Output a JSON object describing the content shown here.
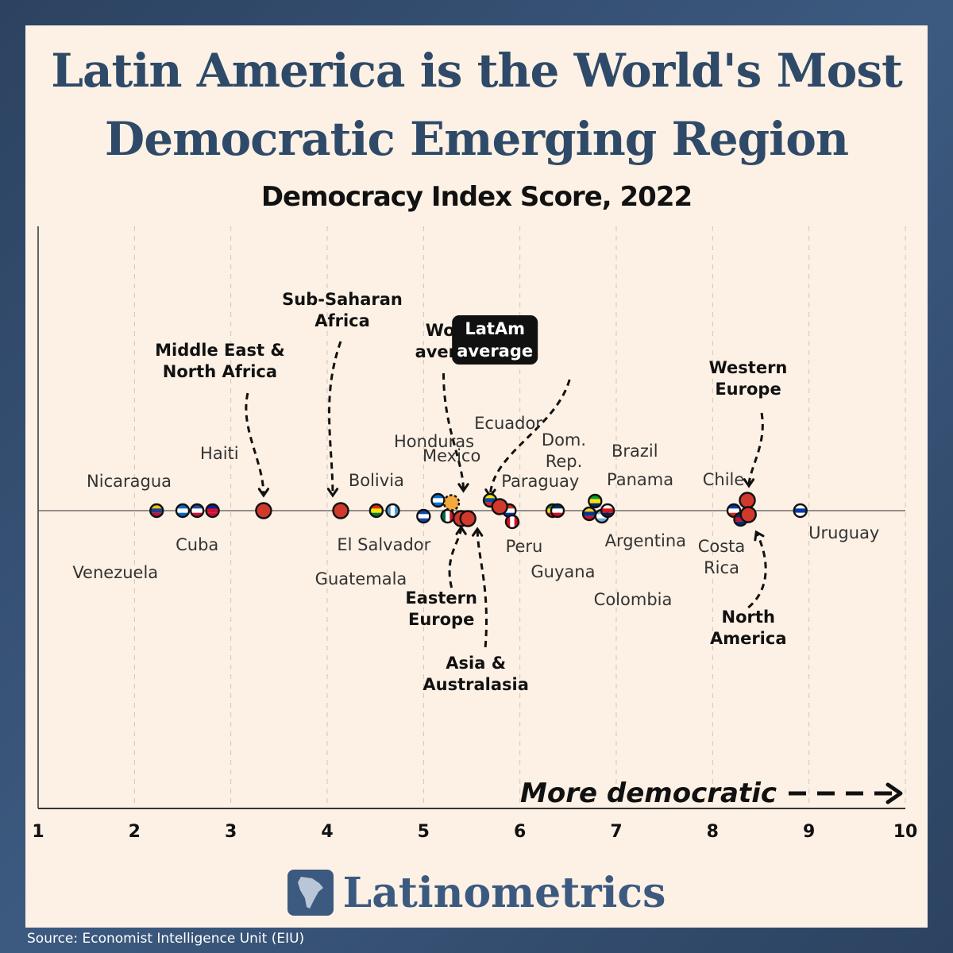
{
  "title_line1": "Latin America is the World's Most",
  "title_line2": "Democratic Emerging Region",
  "brand": "Latinometrics",
  "source": "Source: Economist Intelligence Unit (EIU)",
  "colors": {
    "background": "#34506f",
    "card": "#fdf1e5",
    "title": "#2e4a68",
    "region_marker": "#d0392b",
    "world_marker": "#f4a93c",
    "brand": "#3c5a80"
  },
  "chart_data": {
    "type": "scatter",
    "title": "Democracy Index Score, 2022",
    "xlim": [
      1,
      10
    ],
    "xticks": [
      "1",
      "2",
      "3",
      "4",
      "5",
      "6",
      "7",
      "8",
      "9",
      "10"
    ],
    "grid": true,
    "direction_label": "More democratic",
    "countries": [
      {
        "name": "Venezuela",
        "value": 2.23,
        "flag": "venezuela-flag-icon"
      },
      {
        "name": "Nicaragua",
        "value": 2.5,
        "flag": "nicaragua-flag-icon"
      },
      {
        "name": "Cuba",
        "value": 2.65,
        "flag": "cuba-flag-icon"
      },
      {
        "name": "Haiti",
        "value": 2.81,
        "flag": "haiti-flag-icon"
      },
      {
        "name": "Bolivia",
        "value": 4.51,
        "flag": "bolivia-flag-icon"
      },
      {
        "name": "Guatemala",
        "value": 4.68,
        "flag": "guatemala-flag-icon"
      },
      {
        "name": "El Salvador",
        "value": 5.0,
        "flag": "el-salvador-flag-icon"
      },
      {
        "name": "Honduras",
        "value": 5.15,
        "flag": "honduras-flag-icon"
      },
      {
        "name": "Argentina",
        "value": 6.85,
        "flag": "argentina-flag-icon"
      },
      {
        "name": "Mexico",
        "value": 5.25,
        "flag": "mexico-flag-icon"
      },
      {
        "name": "Ecuador",
        "value": 5.69,
        "flag": "ecuador-flag-icon"
      },
      {
        "name": "Paraguay",
        "value": 5.89,
        "flag": "paraguay-flag-icon"
      },
      {
        "name": "Peru",
        "value": 5.92,
        "flag": "peru-flag-icon"
      },
      {
        "name": "Guyana",
        "value": 6.34,
        "flag": "guyana-flag-icon"
      },
      {
        "name": "Dom. Rep.",
        "value": 6.39,
        "flag": "dominican-republic-flag-icon"
      },
      {
        "name": "Colombia",
        "value": 6.72,
        "flag": "colombia-flag-icon"
      },
      {
        "name": "Brazil",
        "value": 6.78,
        "flag": "brazil-flag-icon"
      },
      {
        "name": "Panama",
        "value": 6.91,
        "flag": "panama-flag-icon"
      },
      {
        "name": "Chile",
        "value": 8.22,
        "flag": "chile-flag-icon"
      },
      {
        "name": "Costa Rica",
        "value": 8.29,
        "flag": "costa-rica-flag-icon"
      },
      {
        "name": "Uruguay",
        "value": 8.91,
        "flag": "uruguay-flag-icon"
      }
    ],
    "regions": [
      {
        "name": "Middle East & North Africa",
        "value": 3.34
      },
      {
        "name": "Sub-Saharan Africa",
        "value": 4.14
      },
      {
        "name": "Eastern Europe",
        "value": 5.39
      },
      {
        "name": "World average",
        "value": 5.29
      },
      {
        "name": "Asia & Australasia",
        "value": 5.46
      },
      {
        "name": "LatAm average",
        "value": 5.79
      },
      {
        "name": "Western Europe",
        "value": 8.36
      },
      {
        "name": "North America",
        "value": 8.37
      }
    ],
    "region_labels": {
      "mena": [
        "Middle East &",
        "North Africa"
      ],
      "ssa": [
        "Sub-Saharan",
        "Africa"
      ],
      "world": [
        "World",
        "average"
      ],
      "latam": [
        "LatAm",
        "average"
      ],
      "weur": [
        "Western",
        "Europe"
      ],
      "eeur": [
        "Eastern",
        "Europe"
      ],
      "asia": [
        "Asia &",
        "Australasia"
      ],
      "namer": [
        "North",
        "America"
      ]
    }
  }
}
